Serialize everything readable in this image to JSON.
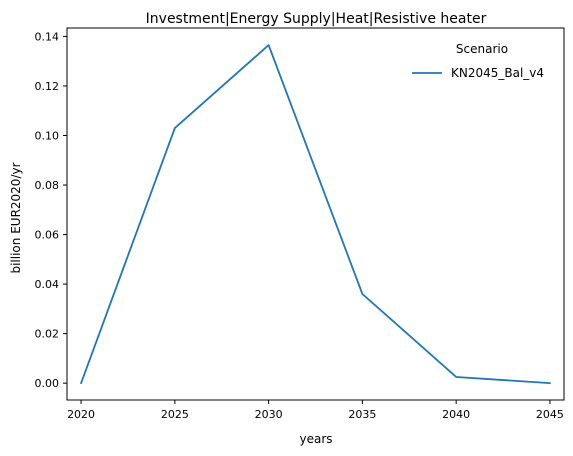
{
  "chart_data": {
    "type": "line",
    "title": "Investment|Energy Supply|Heat|Resistive heater",
    "xlabel": "years",
    "ylabel": "billion EUR2020/yr",
    "x": [
      2020,
      2025,
      2030,
      2035,
      2040,
      2045
    ],
    "x_ticks": [
      "2020",
      "2025",
      "2030",
      "2035",
      "2040",
      "2045"
    ],
    "y_ticks": [
      "0.00",
      "0.02",
      "0.04",
      "0.06",
      "0.08",
      "0.10",
      "0.12",
      "0.14"
    ],
    "xlim": [
      2019.25,
      2045.75
    ],
    "ylim": [
      -0.0068,
      0.1434
    ],
    "grid": false,
    "legend": {
      "title": "Scenario",
      "placement": "top-right"
    },
    "series": [
      {
        "name": "KN2045_Bal_v4",
        "color": "#1f77b4",
        "values": [
          0.0,
          0.103,
          0.1365,
          0.036,
          0.0025,
          0.0
        ]
      }
    ]
  }
}
